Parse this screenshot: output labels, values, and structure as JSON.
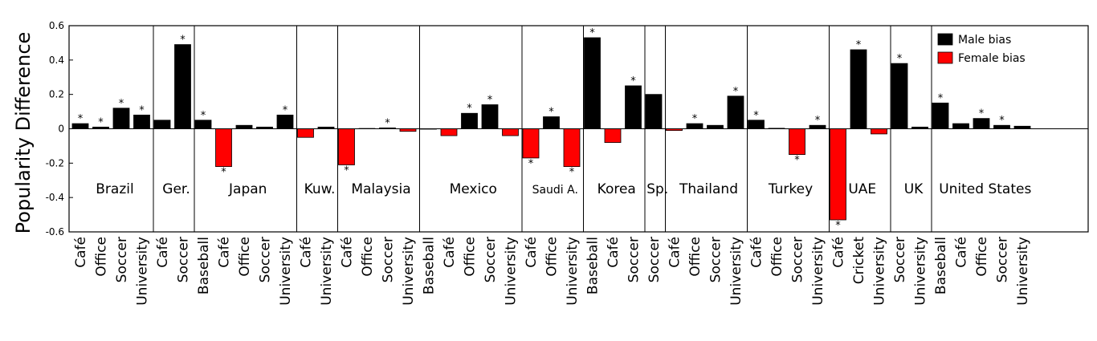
{
  "chart_data": {
    "type": "bar",
    "ylabel": "Popularity Difference",
    "ylim": [
      -0.6,
      0.6
    ],
    "yticks": [
      "-0.6",
      "-0.4",
      "-0.2",
      "0",
      "0.2",
      "0.4",
      "0.6"
    ],
    "legend": {
      "placement": "top-right",
      "entries": [
        {
          "label": "Male bias",
          "color": "#000000"
        },
        {
          "label": "Female bias",
          "color": "#ff0000"
        }
      ]
    },
    "colors": {
      "positive": "#000000",
      "negative": "#ff0000"
    },
    "groups": [
      {
        "name": "Brazil",
        "bars": [
          {
            "category": "Café",
            "value": 0.03,
            "significant": true
          },
          {
            "category": "Office",
            "value": 0.01,
            "significant": true
          },
          {
            "category": "Soccer",
            "value": 0.12,
            "significant": true
          },
          {
            "category": "University",
            "value": 0.08,
            "significant": true
          }
        ]
      },
      {
        "name": "Ger.",
        "bars": [
          {
            "category": "Café",
            "value": 0.05,
            "significant": false
          },
          {
            "category": "Soccer",
            "value": 0.49,
            "significant": true
          }
        ]
      },
      {
        "name": "Japan",
        "bars": [
          {
            "category": "Baseball",
            "value": 0.05,
            "significant": true
          },
          {
            "category": "Café",
            "value": -0.22,
            "significant": true
          },
          {
            "category": "Office",
            "value": 0.02,
            "significant": false
          },
          {
            "category": "Soccer",
            "value": 0.01,
            "significant": false
          },
          {
            "category": "University",
            "value": 0.08,
            "significant": true
          }
        ]
      },
      {
        "name": "Kuw.",
        "bars": [
          {
            "category": "Café",
            "value": -0.05,
            "significant": false
          },
          {
            "category": "University",
            "value": 0.01,
            "significant": false
          }
        ]
      },
      {
        "name": "Malaysia",
        "bars": [
          {
            "category": "Café",
            "value": -0.21,
            "significant": true
          },
          {
            "category": "Office",
            "value": 0.002,
            "significant": false
          },
          {
            "category": "Soccer",
            "value": 0.005,
            "significant": true
          },
          {
            "category": "University",
            "value": -0.015,
            "significant": false
          }
        ]
      },
      {
        "name": "Mexico",
        "bars": [
          {
            "category": "Baseball",
            "value": 0.0,
            "significant": false
          },
          {
            "category": "Café",
            "value": -0.04,
            "significant": false
          },
          {
            "category": "Office",
            "value": 0.09,
            "significant": true
          },
          {
            "category": "Soccer",
            "value": 0.14,
            "significant": true
          },
          {
            "category": "University",
            "value": -0.04,
            "significant": false
          }
        ]
      },
      {
        "name": "Saudi A.",
        "bars": [
          {
            "category": "Café",
            "value": -0.17,
            "significant": true
          },
          {
            "category": "Office",
            "value": 0.07,
            "significant": true
          },
          {
            "category": "University",
            "value": -0.22,
            "significant": true
          }
        ]
      },
      {
        "name": "Korea",
        "bars": [
          {
            "category": "Baseball",
            "value": 0.53,
            "significant": true
          },
          {
            "category": "Café",
            "value": -0.08,
            "significant": false
          },
          {
            "category": "Soccer",
            "value": 0.25,
            "significant": true
          }
        ]
      },
      {
        "name": "Sp.",
        "bars": [
          {
            "category": "Soccer",
            "value": 0.2,
            "significant": false
          }
        ]
      },
      {
        "name": "Thailand",
        "bars": [
          {
            "category": "Café",
            "value": -0.01,
            "significant": false
          },
          {
            "category": "Office",
            "value": 0.03,
            "significant": true
          },
          {
            "category": "Soccer",
            "value": 0.02,
            "significant": false
          },
          {
            "category": "University",
            "value": 0.19,
            "significant": true
          }
        ]
      },
      {
        "name": "Turkey",
        "bars": [
          {
            "category": "Café",
            "value": 0.05,
            "significant": true
          },
          {
            "category": "Office",
            "value": 0.003,
            "significant": false
          },
          {
            "category": "Soccer",
            "value": -0.15,
            "significant": true
          },
          {
            "category": "University",
            "value": 0.02,
            "significant": true
          }
        ]
      },
      {
        "name": "UAE",
        "bars": [
          {
            "category": "Café",
            "value": -0.53,
            "significant": true
          },
          {
            "category": "Cricket",
            "value": 0.46,
            "significant": true
          },
          {
            "category": "University",
            "value": -0.03,
            "significant": false
          }
        ]
      },
      {
        "name": "UK",
        "bars": [
          {
            "category": "Soccer",
            "value": 0.38,
            "significant": true
          },
          {
            "category": "University",
            "value": 0.01,
            "significant": false
          }
        ]
      },
      {
        "name": "United States",
        "bars": [
          {
            "category": "Baseball",
            "value": 0.15,
            "significant": true
          },
          {
            "category": "Café",
            "value": 0.03,
            "significant": false
          },
          {
            "category": "Office",
            "value": 0.06,
            "significant": true
          },
          {
            "category": "Soccer",
            "value": 0.02,
            "significant": true
          },
          {
            "category": "University",
            "value": 0.015,
            "significant": false
          }
        ]
      }
    ]
  }
}
